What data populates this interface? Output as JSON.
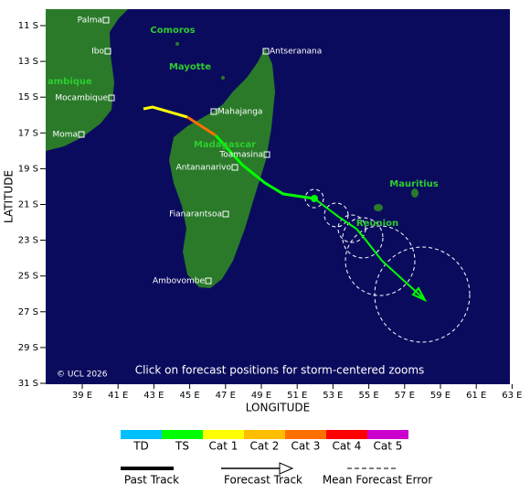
{
  "map": {
    "x_axis_label": "LONGITUDE",
    "y_axis_label": "LATITUDE",
    "lat_ticks": [
      "11 S",
      "13 S",
      "15 S",
      "17 S",
      "19 S",
      "21 S",
      "23 S",
      "25 S",
      "27 S",
      "29 S",
      "31 S"
    ],
    "lon_ticks": [
      "39 E",
      "41 E",
      "43 E",
      "45 E",
      "47 E",
      "49 E",
      "51 E",
      "53 E",
      "55 E",
      "57 E",
      "59 E",
      "61 E",
      "63 E"
    ],
    "places": [
      "Palma",
      "Ibo",
      "Antseranana",
      "Mocambique",
      "Mahajanga",
      "Moma",
      "Toamasina",
      "Antananarivo",
      "Fianarantsoa",
      "Ambovombe"
    ],
    "regions": [
      "Comoros",
      "Mayotte",
      "ambique",
      "Madagascar",
      "Mauritius",
      "Reunion"
    ],
    "copyright": "© UCL 2026",
    "note": "Click on forecast positions for storm-centered zooms"
  },
  "legend": {
    "categories": [
      {
        "label": "TD",
        "color": "#00bfff"
      },
      {
        "label": "TS",
        "color": "#00ff00"
      },
      {
        "label": "Cat 1",
        "color": "#ffff00"
      },
      {
        "label": "Cat 2",
        "color": "#ffbf00"
      },
      {
        "label": "Cat 3",
        "color": "#ff7000"
      },
      {
        "label": "Cat 4",
        "color": "#ff0000"
      },
      {
        "label": "Cat 5",
        "color": "#cc00cc"
      }
    ],
    "past_track": "Past Track",
    "forecast_track": "Forecast Track",
    "mean_error": "Mean Forecast Error"
  }
}
